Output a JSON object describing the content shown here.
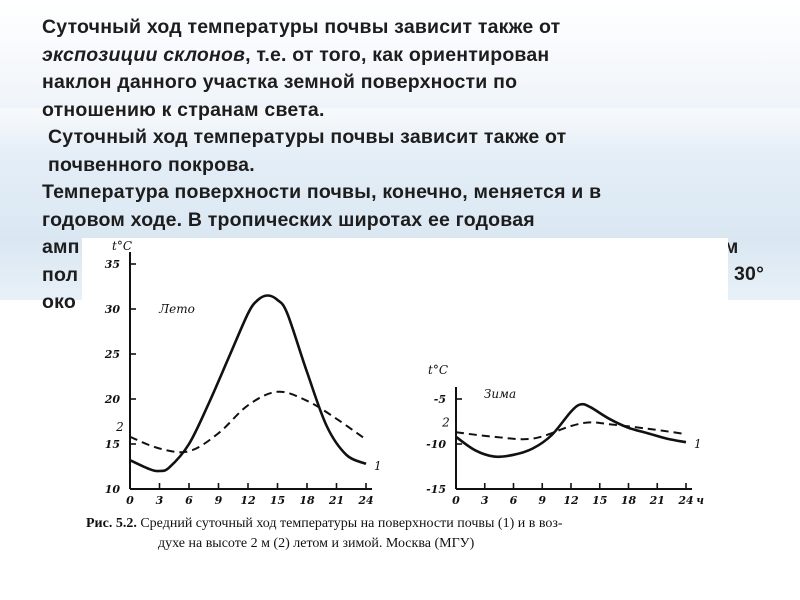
{
  "slide": {
    "para1_line1": "Суточный ход температуры почвы зависит также от",
    "para1_line2_italic": "экспозиции склонов",
    "para1_line2_rest": ", т.е. от того, как ориентирован",
    "para1_line3": "наклон данного участка земной поверхности по",
    "para1_line4": "отношению к странам света.",
    "para2_line1": "Суточный ход температуры почвы зависит также от",
    "para2_line2": "почвенного покрова.",
    "para3_line1": "Температура поверхности почвы, конечно, меняется и в",
    "para3_line2": "годовом ходе. В тропических широтах ее годовая",
    "para3_line3_left": "амп",
    "para3_line3_right": "ом",
    "para3_line4_left": "пол",
    "para3_line4_right": "30°",
    "para3_line5_left": "око"
  },
  "figure": {
    "caption_label": "Рис. 5.2.",
    "caption_line1": "Средний суточный ход температуры на поверхности почвы (1) и в воз-",
    "caption_line2": "духе на высоте 2 м (2) летом и зимой. Москва (МГУ)"
  },
  "chart_data": [
    {
      "type": "line",
      "title": "Лето",
      "ylabel": "t°C",
      "xlabel": "",
      "ylim": [
        10,
        35
      ],
      "yticks": [
        "35",
        "30",
        "25",
        "20",
        "15",
        "10"
      ],
      "xlim": [
        0,
        24
      ],
      "xticks": [
        "0",
        "3",
        "6",
        "9",
        "12",
        "15",
        "18",
        "21",
        "24"
      ],
      "series": [
        {
          "name": "1",
          "x": [
            0,
            2,
            3,
            4,
            6,
            8,
            10,
            12,
            13,
            14,
            15,
            16,
            18,
            20,
            22,
            24
          ],
          "y": [
            13.2,
            12.2,
            12.0,
            12.4,
            15.0,
            19.5,
            24.5,
            29.5,
            31.0,
            31.5,
            31.0,
            29.5,
            23.0,
            17.0,
            13.8,
            12.8
          ]
        },
        {
          "name": "2",
          "x": [
            0,
            3,
            6,
            9,
            12,
            15,
            18,
            21,
            24
          ],
          "y": [
            15.8,
            14.5,
            14.2,
            16.2,
            19.3,
            20.8,
            19.8,
            17.8,
            15.5
          ]
        }
      ]
    },
    {
      "type": "line",
      "title": "Зима",
      "ylabel": "t°C",
      "xlabel": "ч",
      "ylim": [
        -15,
        -5
      ],
      "yticks": [
        "-5",
        "-10",
        "-15"
      ],
      "xlim": [
        0,
        24
      ],
      "xticks": [
        "0",
        "3",
        "6",
        "9",
        "12",
        "15",
        "18",
        "21",
        "24"
      ],
      "series": [
        {
          "name": "1",
          "x": [
            0,
            2,
            4,
            6,
            8,
            10,
            12,
            13,
            14,
            16,
            18,
            20,
            22,
            24
          ],
          "y": [
            -9.2,
            -10.7,
            -11.4,
            -11.2,
            -10.5,
            -9.0,
            -6.4,
            -5.6,
            -5.9,
            -7.2,
            -8.2,
            -8.8,
            -9.4,
            -9.8
          ]
        },
        {
          "name": "2",
          "x": [
            0,
            4,
            8,
            12,
            14,
            16,
            20,
            24
          ],
          "y": [
            -8.7,
            -9.2,
            -9.4,
            -8.0,
            -7.6,
            -7.8,
            -8.3,
            -8.9
          ]
        }
      ]
    }
  ]
}
